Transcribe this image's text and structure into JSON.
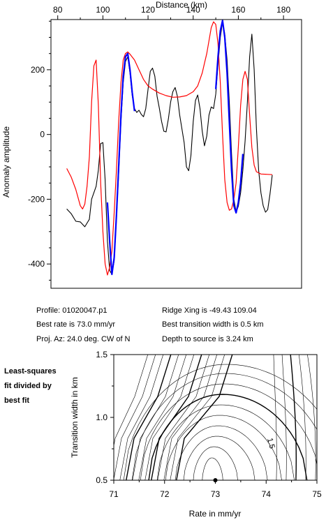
{
  "profile_plot": {
    "x_title": "Distance (km)",
    "y_title": "Anomaly amplitude",
    "x_ticks": [
      "80",
      "100",
      "120",
      "140",
      "160",
      "180"
    ],
    "y_ticks": [
      "200",
      "0",
      "-200",
      "-400"
    ]
  },
  "info": {
    "profile": "Profile: 01020047.p1",
    "best_rate": "Best rate is 73.0 mm/yr",
    "proj_az": "Proj. Az: 24.0 deg. CW of N",
    "ridge_xing": "Ridge Xing is -49.43 109.04",
    "best_transition": "Best transition width is 0.5 km",
    "depth": "Depth to source is   3.24 km"
  },
  "contour_plot": {
    "note_lines": [
      "Least-squares",
      "fit divided by",
      "best fit"
    ],
    "x_title": "Rate in mm/yr",
    "y_title": "Transition width in km",
    "x_ticks": [
      "71",
      "72",
      "73",
      "74",
      "75"
    ],
    "y_ticks": [
      "1.5",
      "1.0",
      "0.5"
    ],
    "contour_label": "1.5",
    "best_fit_point": {
      "rate": 73.0,
      "width": 0.5
    }
  },
  "chart_data": [
    {
      "type": "line",
      "xlabel": "Distance (km)",
      "ylabel": "Anomaly amplitude",
      "xlim": [
        77,
        188
      ],
      "ylim": [
        -475,
        355
      ],
      "x_tick_values": [
        80,
        100,
        120,
        140,
        160,
        180
      ],
      "y_tick_values": [
        200,
        0,
        -200,
        -400
      ],
      "series": [
        {
          "color": "#000000",
          "points": [
            [
              84,
              -230
            ],
            [
              86,
              -245
            ],
            [
              88,
              -268
            ],
            [
              90,
              -270
            ],
            [
              92,
              -285
            ],
            [
              94,
              -262
            ],
            [
              95,
              -200
            ],
            [
              97,
              -160
            ],
            [
              98,
              -110
            ],
            [
              99,
              -28
            ],
            [
              100,
              -25
            ],
            [
              101,
              -140
            ],
            [
              102,
              -330
            ],
            [
              103,
              -420
            ],
            [
              104,
              -432
            ],
            [
              105,
              -390
            ],
            [
              106,
              -260
            ],
            [
              107,
              -120
            ],
            [
              108,
              40
            ],
            [
              109,
              160
            ],
            [
              110,
              225
            ],
            [
              111,
              240
            ],
            [
              112,
              190
            ],
            [
              113,
              120
            ],
            [
              114,
              80
            ],
            [
              115,
              68
            ],
            [
              116,
              75
            ],
            [
              117,
              62
            ],
            [
              118,
              55
            ],
            [
              119,
              80
            ],
            [
              120,
              140
            ],
            [
              121,
              195
            ],
            [
              122,
              205
            ],
            [
              123,
              180
            ],
            [
              124,
              118
            ],
            [
              125,
              82
            ],
            [
              126,
              40
            ],
            [
              127,
              10
            ],
            [
              128,
              8
            ],
            [
              129,
              48
            ],
            [
              130,
              100
            ],
            [
              131,
              132
            ],
            [
              132,
              145
            ],
            [
              133,
              118
            ],
            [
              134,
              60
            ],
            [
              136,
              -25
            ],
            [
              137,
              -100
            ],
            [
              138,
              -112
            ],
            [
              139,
              -65
            ],
            [
              140,
              40
            ],
            [
              141,
              105
            ],
            [
              142,
              122
            ],
            [
              143,
              80
            ],
            [
              144,
              10
            ],
            [
              145,
              -35
            ],
            [
              146,
              -5
            ],
            [
              147,
              60
            ],
            [
              148,
              85
            ],
            [
              149,
              80
            ],
            [
              150,
              125
            ],
            [
              151,
              215
            ],
            [
              152,
              300
            ],
            [
              153,
              348
            ],
            [
              154,
              310
            ],
            [
              155,
              230
            ],
            [
              156,
              100
            ],
            [
              157,
              -60
            ],
            [
              158,
              -200
            ],
            [
              159,
              -240
            ],
            [
              160,
              -222
            ],
            [
              161,
              -180
            ],
            [
              162,
              -110
            ],
            [
              163,
              -20
            ],
            [
              164,
              100
            ],
            [
              165,
              240
            ],
            [
              166,
              310
            ],
            [
              167,
              200
            ],
            [
              168,
              20
            ],
            [
              169,
              -110
            ],
            [
              170,
              -180
            ],
            [
              171,
              -220
            ],
            [
              172,
              -240
            ],
            [
              173,
              -232
            ],
            [
              174,
              -185
            ],
            [
              175,
              -125
            ]
          ]
        },
        {
          "color": "#ff0000",
          "points": [
            [
              84,
              -105
            ],
            [
              86,
              -132
            ],
            [
              88,
              -170
            ],
            [
              90,
              -220
            ],
            [
              91,
              -230
            ],
            [
              92,
              -215
            ],
            [
              93,
              -160
            ],
            [
              94,
              -70
            ],
            [
              95,
              100
            ],
            [
              96,
              212
            ],
            [
              97,
              230
            ],
            [
              98,
              90
            ],
            [
              99,
              -150
            ],
            [
              100,
              -300
            ],
            [
              101,
              -400
            ],
            [
              102,
              -434
            ],
            [
              103,
              -410
            ],
            [
              104,
              -360
            ],
            [
              105,
              -240
            ],
            [
              106,
              -110
            ],
            [
              107,
              40
            ],
            [
              108,
              160
            ],
            [
              109,
              230
            ],
            [
              110,
              250
            ],
            [
              111,
              255
            ],
            [
              112,
              248
            ],
            [
              114,
              230
            ],
            [
              116,
              200
            ],
            [
              118,
              170
            ],
            [
              120,
              150
            ],
            [
              122,
              140
            ],
            [
              125,
              128
            ],
            [
              128,
              120
            ],
            [
              131,
              115
            ],
            [
              134,
              116
            ],
            [
              137,
              120
            ],
            [
              140,
              132
            ],
            [
              142,
              150
            ],
            [
              144,
              190
            ],
            [
              145,
              220
            ],
            [
              146,
              250
            ],
            [
              147,
              290
            ],
            [
              148,
              330
            ],
            [
              149,
              348
            ],
            [
              150,
              340
            ],
            [
              151,
              280
            ],
            [
              152,
              160
            ],
            [
              153,
              0
            ],
            [
              154,
              -140
            ],
            [
              155,
              -210
            ],
            [
              156,
              -234
            ],
            [
              157,
              -230
            ],
            [
              158,
              -200
            ],
            [
              159,
              -150
            ],
            [
              160,
              -40
            ],
            [
              161,
              90
            ],
            [
              162,
              170
            ],
            [
              163,
              195
            ],
            [
              164,
              170
            ],
            [
              165,
              60
            ],
            [
              166,
              -40
            ],
            [
              167,
              -95
            ],
            [
              168,
              -115
            ],
            [
              170,
              -122
            ],
            [
              175,
              -124
            ]
          ]
        },
        {
          "color": "#0000ff",
          "points": [
            [
              102,
              -210
            ],
            [
              103,
              -330
            ],
            [
              104,
              -432
            ],
            [
              105,
              -380
            ],
            [
              106,
              -250
            ],
            [
              107,
              -100
            ],
            [
              108,
              60
            ],
            [
              109,
              180
            ],
            [
              110,
              240
            ],
            [
              111,
              250
            ],
            [
              112,
              200
            ],
            [
              113,
              130
            ],
            [
              114,
              72
            ]
          ]
        },
        {
          "color": "#0000ff",
          "points": [
            [
              150,
              140
            ],
            [
              151,
              240
            ],
            [
              152,
              320
            ],
            [
              153,
              352
            ],
            [
              154,
              300
            ],
            [
              155,
              190
            ],
            [
              156,
              40
            ],
            [
              157,
              -110
            ],
            [
              158,
              -220
            ],
            [
              159,
              -242
            ],
            [
              160,
              -210
            ],
            [
              161,
              -150
            ],
            [
              162,
              -60
            ]
          ]
        }
      ]
    },
    {
      "type": "contour",
      "xlabel": "Rate in mm/yr",
      "ylabel": "Transition width in km",
      "xlim": [
        71,
        75
      ],
      "ylim": [
        0.5,
        1.5
      ],
      "x_tick_values": [
        71,
        72,
        73,
        74,
        75
      ],
      "y_tick_values": [
        0.5,
        1.0,
        1.5
      ],
      "best_fit": {
        "rate": 73.0,
        "width": 0.5
      },
      "labeled_contour": 1.5
    }
  ]
}
